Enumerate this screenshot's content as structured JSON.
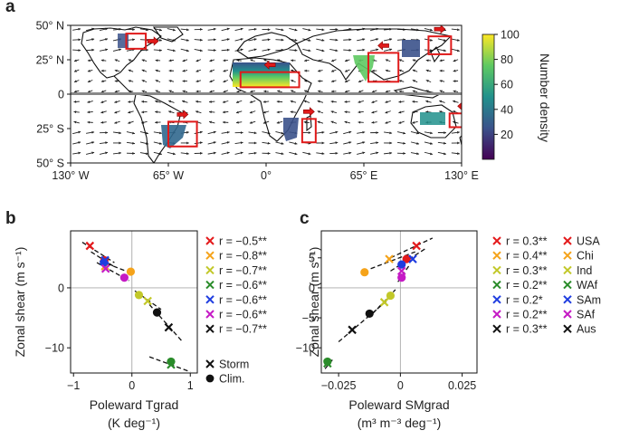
{
  "panel_labels": {
    "a": "a",
    "b": "b",
    "c": "c"
  },
  "chart_data": [
    {
      "panel": "a",
      "type": "heatmap",
      "title": "",
      "description_kind": "map",
      "x_ticks": [
        "130° W",
        "65° W",
        "0°",
        "65° E",
        "130° E"
      ],
      "x_tick_values": [
        -130,
        -65,
        0,
        65,
        130
      ],
      "y_ticks": [
        "50° N",
        "25° N",
        "0",
        "25° S",
        "50° S"
      ],
      "y_tick_values": [
        50,
        25,
        0,
        -25,
        -50
      ],
      "xlim": [
        -130,
        130
      ],
      "ylim": [
        -50,
        50
      ],
      "colorbar": {
        "label": "Number density",
        "ticks": [
          "20",
          "40",
          "60",
          "80",
          "100"
        ],
        "tick_values": [
          20,
          40,
          60,
          80,
          100
        ],
        "range": [
          0,
          100
        ],
        "colors": [
          "#440154",
          "#3b528b",
          "#21918c",
          "#5ec962",
          "#fde725"
        ]
      },
      "regions": [
        {
          "name": "USA",
          "lon": [
            -93,
            -80
          ],
          "lat": [
            33,
            44
          ],
          "arrow": "right"
        },
        {
          "name": "WAf",
          "lon": [
            -17,
            22
          ],
          "lat": [
            5,
            16
          ],
          "arrow": "left"
        },
        {
          "name": "Ind",
          "lon": [
            68,
            88
          ],
          "lat": [
            9,
            30
          ],
          "arrow": "left"
        },
        {
          "name": "Chi",
          "lon": [
            108,
            123
          ],
          "lat": [
            29,
            42
          ],
          "arrow": "right"
        },
        {
          "name": "SAm",
          "lon": [
            -65,
            -46
          ],
          "lat": [
            -38,
            -20
          ],
          "arrow": "right"
        },
        {
          "name": "SAf",
          "lon": [
            24,
            33
          ],
          "lat": [
            -35,
            -18
          ],
          "arrow": "right"
        },
        {
          "name": "Aus",
          "lon": [
            122,
            140
          ],
          "lat": [
            -24,
            -14
          ],
          "arrow": "left"
        }
      ]
    },
    {
      "panel": "b",
      "type": "scatter",
      "xlabel": "Poleward Tgrad",
      "xlabel_unit": "(K deg⁻¹)",
      "ylabel": "Zonal shear (m s⁻¹)",
      "xlim": [
        -1.05,
        1.12
      ],
      "ylim": [
        -14.2,
        9.5
      ],
      "x_ticks": [
        "−1",
        "0",
        "1"
      ],
      "x_tick_values": [
        -1,
        0,
        1
      ],
      "y_ticks": [
        "0",
        "−10"
      ],
      "y_tick_values": [
        0,
        -10
      ],
      "series": [
        {
          "name": "USA",
          "color": "#e41a1c",
          "r_label": "r = −0.5**",
          "storm": [
            -0.72,
            7.0
          ],
          "clim": [
            -0.47,
            4.6
          ],
          "fit": [
            [
              -0.85,
              7.6
            ],
            [
              -0.3,
              4.2
            ]
          ]
        },
        {
          "name": "Chi",
          "color": "#f5a31a",
          "r_label": "r = −0.8**",
          "storm": [
            -0.46,
            3.6
          ],
          "clim": [
            -0.02,
            2.7
          ],
          "fit": [
            [
              -0.55,
              4.5
            ],
            [
              -0.05,
              2.6
            ]
          ]
        },
        {
          "name": "Ind",
          "color": "#c2c829",
          "r_label": "r = −0.7**",
          "storm": [
            0.27,
            -2.2
          ],
          "clim": [
            0.12,
            -1.2
          ],
          "fit": [
            [
              0.05,
              -0.5
            ],
            [
              0.5,
              -3.6
            ]
          ]
        },
        {
          "name": "WAf",
          "color": "#2a8c2a",
          "r_label": "r = −0.6**",
          "storm": [
            0.67,
            -12.8
          ],
          "clim": [
            0.67,
            -12.3
          ],
          "fit": [
            [
              0.3,
              -11.5
            ],
            [
              1.0,
              -14.0
            ]
          ]
        },
        {
          "name": "SAm",
          "color": "#1f3de0",
          "r_label": "r = −0.6**",
          "storm": [
            -0.46,
            4.6
          ],
          "clim": [
            -0.48,
            4.2
          ],
          "fit": [
            [
              -0.7,
              6.0
            ],
            [
              -0.3,
              3.5
            ]
          ]
        },
        {
          "name": "SAf",
          "color": "#c51bc5",
          "r_label": "r = −0.6**",
          "storm": [
            -0.45,
            3.2
          ],
          "clim": [
            -0.13,
            1.7
          ],
          "fit": [
            [
              -0.6,
              4.2
            ],
            [
              -0.05,
              1.2
            ]
          ]
        },
        {
          "name": "Aus",
          "color": "#111111",
          "r_label": "r = −0.7**",
          "storm": [
            0.63,
            -6.6
          ],
          "clim": [
            0.43,
            -4.1
          ],
          "fit": [
            [
              0.3,
              -2.8
            ],
            [
              0.85,
              -8.8
            ]
          ]
        }
      ],
      "marker_legend": [
        {
          "marker": "x",
          "label": "Storm"
        },
        {
          "marker": "circle",
          "label": "Clim."
        }
      ]
    },
    {
      "panel": "c",
      "type": "scatter",
      "xlabel": "Poleward SMgrad",
      "xlabel_unit": "(m³ m⁻³ deg⁻¹)",
      "ylabel": "Zonal shear (m s⁻¹)",
      "xlim": [
        -0.032,
        0.031
      ],
      "ylim": [
        -14.2,
        9.5
      ],
      "x_ticks": [
        "−0.025",
        "0",
        "0.025"
      ],
      "x_tick_values": [
        -0.025,
        0,
        0.025
      ],
      "y_ticks": [
        "5",
        "0",
        "−5",
        "−10"
      ],
      "y_tick_values": [
        5,
        0,
        -5,
        -10
      ],
      "series": [
        {
          "name": "USA",
          "color": "#e41a1c",
          "r_label": "r = 0.3**",
          "storm": [
            0.0065,
            7.0
          ],
          "clim": [
            0.0025,
            4.8
          ],
          "fit": [
            [
              -0.004,
              5.0
            ],
            [
              0.013,
              8.3
            ]
          ]
        },
        {
          "name": "Chi",
          "color": "#f5a31a",
          "r_label": "r = 0.4**",
          "storm": [
            -0.0045,
            4.8
          ],
          "clim": [
            -0.0145,
            2.6
          ],
          "fit": [
            [
              -0.012,
              3.2
            ],
            [
              0.006,
              6.0
            ]
          ]
        },
        {
          "name": "Ind",
          "color": "#c2c829",
          "r_label": "r = 0.3**",
          "storm": [
            -0.0065,
            -2.4
          ],
          "clim": [
            -0.004,
            -1.3
          ],
          "fit": [
            [
              -0.011,
              -4.2
            ],
            [
              -0.002,
              -0.3
            ]
          ]
        },
        {
          "name": "WAf",
          "color": "#2a8c2a",
          "r_label": "r = 0.2**",
          "storm": [
            -0.0295,
            -12.6
          ],
          "clim": [
            -0.0295,
            -12.3
          ],
          "fit": [
            [
              -0.0305,
              -13.5
            ],
            [
              -0.0275,
              -12.0
            ]
          ]
        },
        {
          "name": "SAm",
          "color": "#1f3de0",
          "r_label": "r = 0.2*",
          "storm": [
            0.005,
            4.8
          ],
          "clim": [
            0.0005,
            3.9
          ],
          "fit": [
            [
              -0.004,
              2.8
            ],
            [
              0.01,
              6.5
            ]
          ]
        },
        {
          "name": "SAf",
          "color": "#c51bc5",
          "r_label": "r = 0.2**",
          "storm": [
            0.0005,
            2.8
          ],
          "clim": [
            0.0005,
            1.7
          ],
          "fit": [
            [
              -0.001,
              1.0
            ],
            [
              0.004,
              4.0
            ]
          ]
        },
        {
          "name": "Aus",
          "color": "#111111",
          "r_label": "r = 0.3**",
          "storm": [
            -0.0195,
            -7.0
          ],
          "clim": [
            -0.0125,
            -4.3
          ],
          "fit": [
            [
              -0.025,
              -9.0
            ],
            [
              -0.005,
              -2.0
            ]
          ]
        }
      ],
      "name_legend": [
        "USA",
        "Chi",
        "Ind",
        "WAf",
        "SAm",
        "SAf",
        "Aus"
      ]
    }
  ]
}
